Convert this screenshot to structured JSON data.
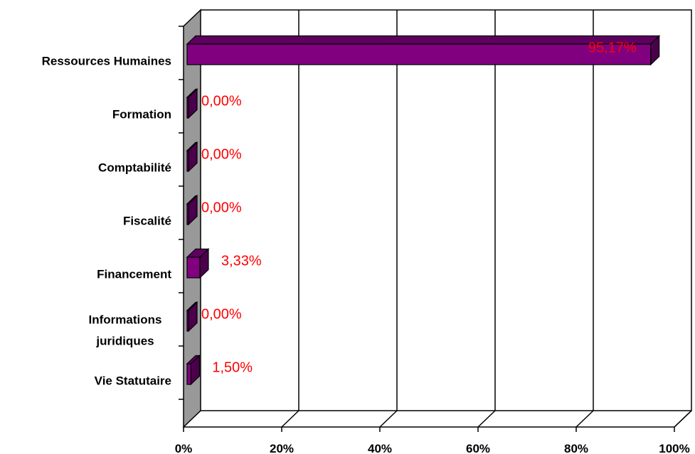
{
  "chart_data": {
    "type": "bar",
    "orientation": "horizontal",
    "three_d": true,
    "title": "",
    "xlabel": "",
    "ylabel": "",
    "categories": [
      [
        "Ressources Humaines"
      ],
      [
        "Formation"
      ],
      [
        "Comptabilité"
      ],
      [
        "Fiscalité"
      ],
      [
        "Financement"
      ],
      [
        "Informations",
        "juridiques"
      ],
      [
        "Vie Statutaire"
      ]
    ],
    "values": [
      95.17,
      0.0,
      0.0,
      0.0,
      3.33,
      0.0,
      1.5
    ],
    "data_labels": [
      "95,17%",
      "0,00%",
      "0,00%",
      "0,00%",
      "3,33%",
      "0,00%",
      "1,50%"
    ],
    "xlim": [
      0,
      100
    ],
    "xticks": [
      "0%",
      "20%",
      "40%",
      "60%",
      "80%",
      "100%"
    ],
    "grid": true,
    "legend": "none",
    "colors": {
      "bar_front": "#800080",
      "bar_top": "#5e0060",
      "bar_side": "#4a004b",
      "wall": "#999999",
      "data_label": "#ff0000",
      "grid": "#000000"
    }
  }
}
